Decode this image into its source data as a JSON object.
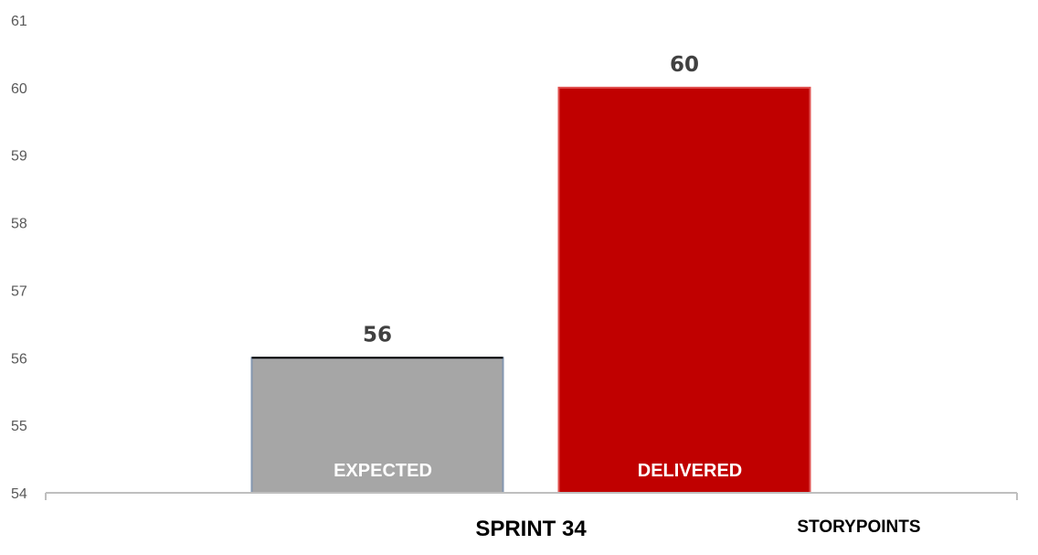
{
  "chart_data": {
    "type": "bar",
    "categories": [
      "SPRINT 34"
    ],
    "series": [
      {
        "name": "EXPECTED",
        "values": [
          56
        ],
        "color": "#a6a6a6",
        "border": "#8497b0"
      },
      {
        "name": "DELIVERED",
        "values": [
          60
        ],
        "color": "#c00000",
        "border": "#e0504f"
      }
    ],
    "ylim": [
      54,
      61
    ],
    "yticks": [
      54,
      55,
      56,
      57,
      58,
      59,
      60,
      61
    ],
    "data_labels": [
      "56",
      "60"
    ],
    "side_label": "STORYPOINTS",
    "grid": false,
    "axis_color": "#bfbfbf"
  }
}
